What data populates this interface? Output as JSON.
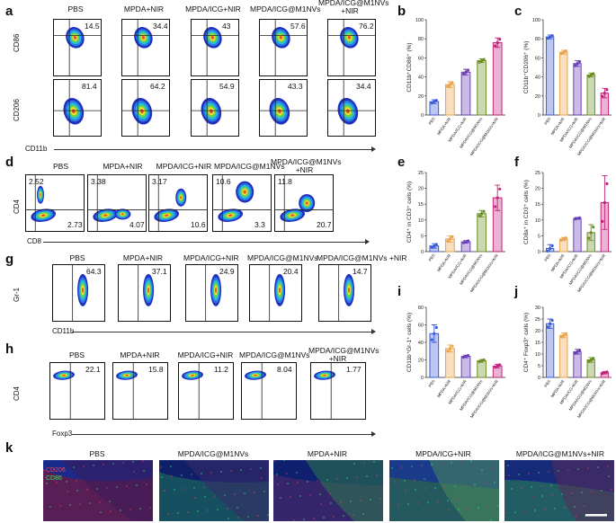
{
  "panel_labels": {
    "a": "a",
    "b": "b",
    "c": "c",
    "d": "d",
    "e": "e",
    "f": "f",
    "g": "g",
    "h": "h",
    "i": "i",
    "j": "j",
    "k": "k"
  },
  "groups_a": [
    "PBS",
    "MPDA+NIR",
    "MPDA/ICG+NIR",
    "MPDA/ICG@M1NVs",
    "MPDA/ICG@M1NVs\n+NIR"
  ],
  "groups_d": [
    "PBS",
    "MPDA+NIR",
    "MPDA/ICG+NIR",
    "MPDA/ICG@M1NVs",
    "MPDA/ICG@M1NVs\n+NIR"
  ],
  "groups_h": [
    "PBS",
    "MPDA+NIR",
    "MPDA/ICG+NIR",
    "MPDA/ICG@M1NVs",
    "MPDA/ICG@M1NVs\n+NIR"
  ],
  "a": {
    "cd86_vals": [
      "14.5",
      "34.4",
      "43",
      "57.6",
      "76.2"
    ],
    "cd206_vals": [
      "81.4",
      "64.2",
      "54.9",
      "43.3",
      "34.4"
    ],
    "ylabel_top": "CD86",
    "ylabel_bottom": "CD206",
    "xlabel": "CD11b"
  },
  "d": {
    "ul": [
      "2.52",
      "3.38",
      "3.17",
      "10.6",
      "11.8"
    ],
    "lr": [
      "2.73",
      "4.07",
      "10.6",
      "3.3",
      "20.7"
    ],
    "ylabel": "CD4",
    "xlabel": "CD8"
  },
  "g": {
    "vals": [
      "64.3",
      "37.1",
      "24.9",
      "20.4",
      "14.7"
    ],
    "ylabel": "Gr-1",
    "xlabel": "CD11b"
  },
  "h": {
    "vals": [
      "22.1",
      "15.8",
      "11.2",
      "8.04",
      "1.77"
    ],
    "ylabel": "CD4",
    "xlabel": "Foxp3"
  },
  "k": {
    "titles": [
      "PBS",
      "MPDA/ICG@M1NVs",
      "MPDA+NIR",
      "MPDA/ICG+NIR",
      "MPDA/ICG@M1NVs+NIR"
    ],
    "legend_red": "CD206",
    "legend_green": "CD86"
  },
  "bar_categories": [
    "PBS",
    "MPDA+NIR",
    "MPDA/ICG+NIR",
    "MPDA/ICG@M1NVs",
    "MPDA/ICG@M1NVs+NIR"
  ],
  "colors": [
    "#3b5bdb",
    "#e8a24a",
    "#6a3fb5",
    "#6b8e23",
    "#c0267a"
  ],
  "chart_data": [
    {
      "id": "b",
      "type": "bar",
      "ylabel": "CD11b⁺CD86⁺ (%)",
      "ylim": [
        0,
        100
      ],
      "yticks": [
        0,
        20,
        40,
        60,
        80,
        100
      ],
      "values": [
        14,
        32,
        45,
        57,
        76
      ],
      "errors": [
        2,
        3,
        3,
        2,
        5
      ]
    },
    {
      "id": "c",
      "type": "bar",
      "ylabel": "CD11b⁺CD206⁺ (%)",
      "ylim": [
        0,
        100
      ],
      "yticks": [
        0,
        20,
        40,
        60,
        80,
        100
      ],
      "values": [
        82,
        66,
        54,
        42,
        23
      ],
      "errors": [
        2,
        2,
        3,
        2,
        5
      ]
    },
    {
      "id": "e",
      "type": "bar",
      "ylabel": "CD4⁺ in CD3⁺ cells (%)",
      "ylim": [
        0,
        25
      ],
      "yticks": [
        0,
        5,
        10,
        15,
        20,
        25
      ],
      "values": [
        1.8,
        4,
        3.1,
        12,
        17
      ],
      "errors": [
        0.7,
        1,
        0.4,
        1,
        4
      ]
    },
    {
      "id": "f",
      "type": "bar",
      "ylabel": "CD8a⁺ in CD3⁺ cells (%)",
      "ylim": [
        0,
        25
      ],
      "yticks": [
        0,
        5,
        10,
        15,
        20,
        25
      ],
      "values": [
        1,
        4,
        10.5,
        6,
        15.5
      ],
      "errors": [
        1.2,
        0.5,
        0.3,
        2.5,
        8.5
      ]
    },
    {
      "id": "i",
      "type": "bar",
      "ylabel": "CD11b⁺Gr-1⁺ cells (%)",
      "ylim": [
        0,
        80
      ],
      "yticks": [
        0,
        20,
        40,
        60,
        80
      ],
      "values": [
        50,
        33,
        24,
        19,
        13
      ],
      "errors": [
        10,
        4,
        1.5,
        1.5,
        2
      ]
    },
    {
      "id": "j",
      "type": "bar",
      "ylabel": "CD4⁺ Foxp3⁺ cells (%)",
      "ylim": [
        0,
        30
      ],
      "yticks": [
        0,
        5,
        10,
        15,
        20,
        25,
        30
      ],
      "values": [
        23,
        18,
        11,
        7.5,
        2
      ],
      "errors": [
        2,
        1,
        1,
        1,
        0.5
      ]
    }
  ]
}
